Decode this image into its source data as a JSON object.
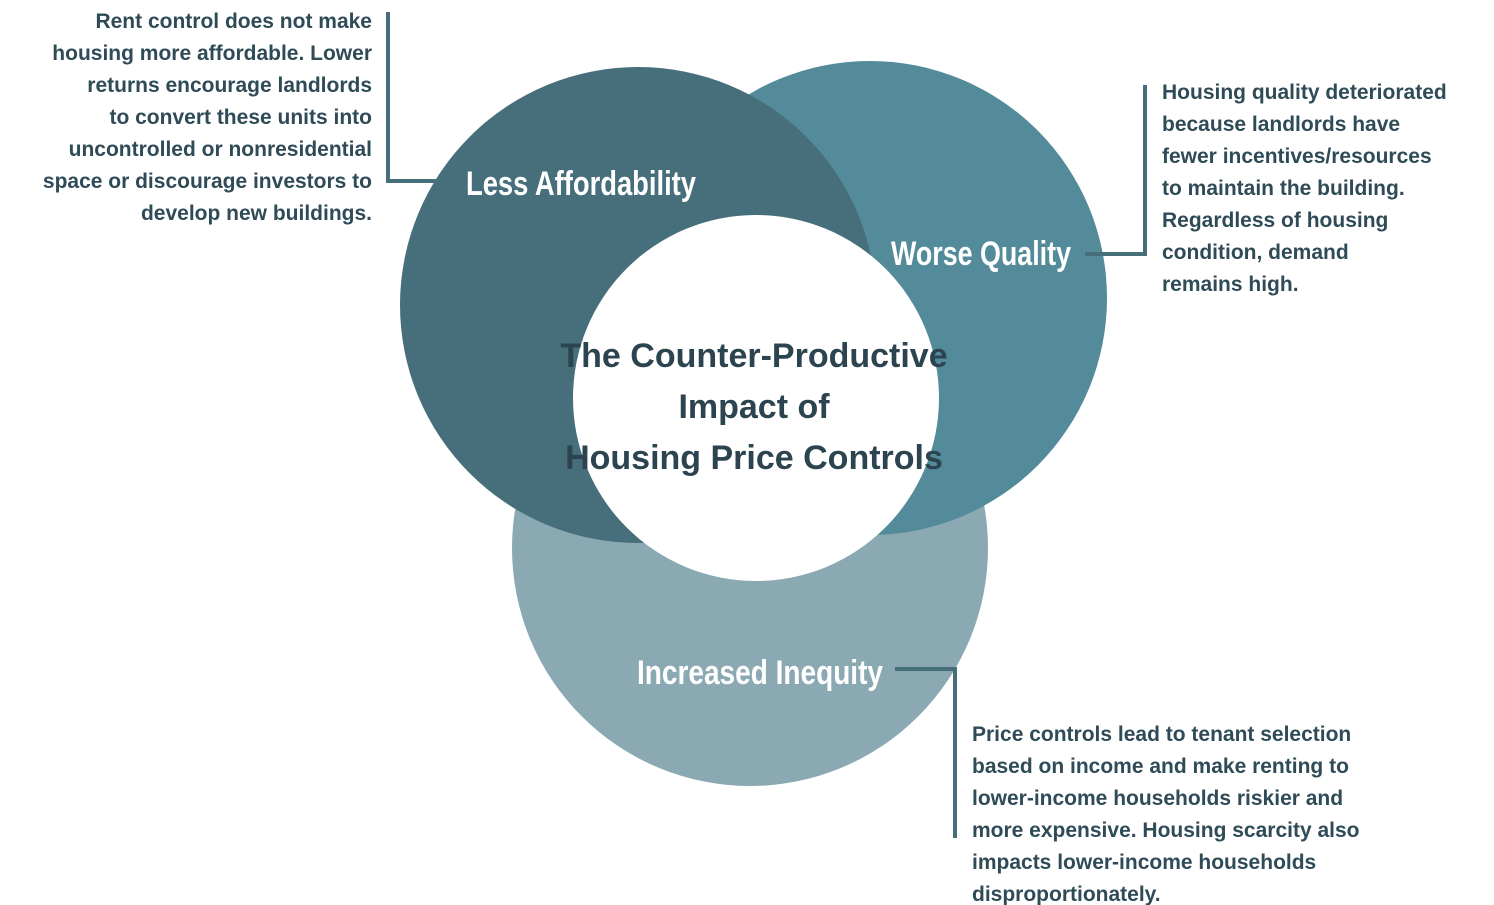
{
  "center_title": [
    "The Counter-Productive",
    "Impact of",
    "Housing Price Controls"
  ],
  "circles": [
    {
      "label": "Less Affordability",
      "note": [
        "Rent control does not make",
        "housing more affordable. Lower",
        "returns encourage landlords",
        "to convert these units into",
        "uncontrolled or nonresidential",
        "space or discourage investors to",
        "develop new buildings."
      ]
    },
    {
      "label": "Worse Quality",
      "note": [
        "Housing quality deteriorated",
        "because landlords have",
        "fewer incentives/resources",
        "to maintain the building.",
        "Regardless of housing",
        "condition, demand",
        "remains high."
      ]
    },
    {
      "label": "Increased Inequity",
      "note": [
        "Price controls lead to tenant selection",
        "based on income and make renting to",
        "lower-income households riskier and",
        "more expensive. Housing scarcity also",
        "impacts lower-income households",
        "disproportionately."
      ]
    }
  ]
}
